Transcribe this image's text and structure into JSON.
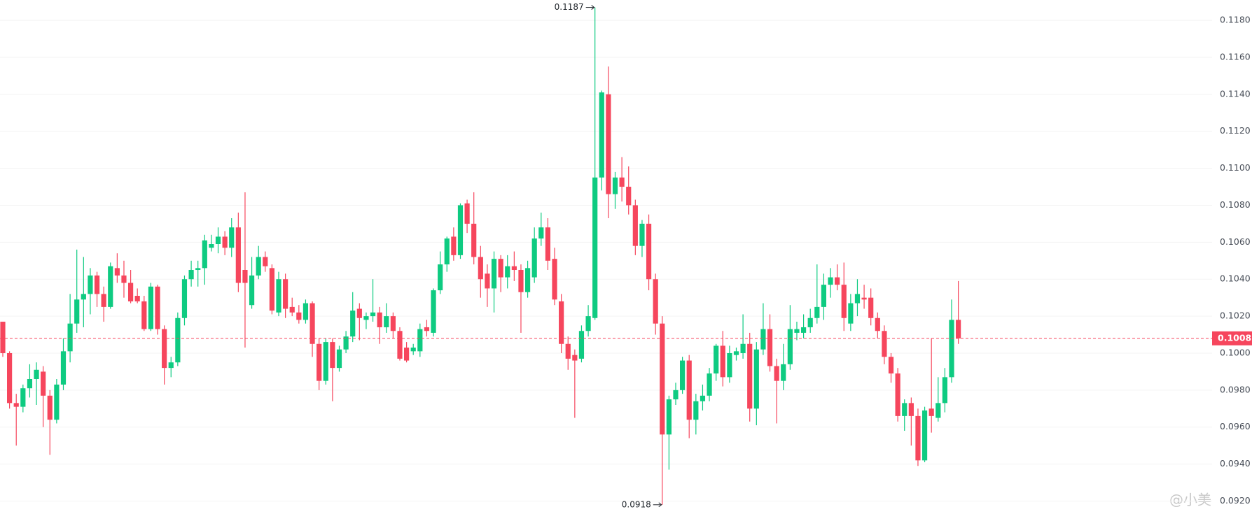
{
  "chart_data": {
    "type": "candlestick",
    "up_color": "#0ecb81",
    "down_color": "#f6465d",
    "ylim": [
      0.0913,
      0.1191
    ],
    "yticks": [
      {
        "value": 0.092,
        "label": "0.0920"
      },
      {
        "value": 0.094,
        "label": "0.0940"
      },
      {
        "value": 0.096,
        "label": "0.0960"
      },
      {
        "value": 0.098,
        "label": "0.0980"
      },
      {
        "value": 0.1,
        "label": "0.1000"
      },
      {
        "value": 0.102,
        "label": "0.1020"
      },
      {
        "value": 0.104,
        "label": "0.1040"
      },
      {
        "value": 0.106,
        "label": "0.1060"
      },
      {
        "value": 0.108,
        "label": "0.1080"
      },
      {
        "value": 0.11,
        "label": "0.1100"
      },
      {
        "value": 0.112,
        "label": "0.1120"
      },
      {
        "value": 0.114,
        "label": "0.1140"
      },
      {
        "value": 0.116,
        "label": "0.1160"
      },
      {
        "value": 0.118,
        "label": "0.1180"
      }
    ],
    "grid": true,
    "watermark": "@小美",
    "open": [
      0.1017,
      0.1,
      0.0973,
      0.0971,
      0.0981,
      0.0986,
      0.099,
      0.0977,
      0.0964,
      0.0983,
      0.1001,
      0.1016,
      0.1029,
      0.1032,
      0.1042,
      0.1032,
      0.1025,
      0.1046,
      0.1042,
      0.1038,
      0.1031,
      0.1028,
      0.1013,
      0.1036,
      0.1013,
      0.0992,
      0.0995,
      0.1019,
      0.104,
      0.1045,
      0.1046,
      0.1057,
      0.1059,
      0.1063,
      0.1057,
      0.1068,
      0.1045,
      0.1026,
      0.1042,
      0.1052,
      0.1046,
      0.1022,
      0.104,
      0.1025,
      0.1022,
      0.1018,
      0.1027,
      0.1005,
      0.0985,
      0.1006,
      0.0992,
      0.1002,
      0.1009,
      0.1024,
      0.1018,
      0.102,
      0.1022,
      0.1014,
      0.102,
      0.1012,
      0.1003,
      0.1001,
      0.1001,
      0.1014,
      0.1011,
      0.1034,
      0.1048,
      0.1063,
      0.1053,
      0.1081,
      0.107,
      0.1052,
      0.1043,
      0.1035,
      0.1051,
      0.1041,
      0.1047,
      0.1045,
      0.1033,
      0.1041,
      0.1062,
      0.1068,
      0.1051,
      0.1028,
      0.1005,
      0.0999,
      0.0997,
      0.1012,
      0.1019,
      0.1095,
      0.114,
      0.1086,
      0.1095,
      0.109,
      0.108,
      0.1058,
      0.107,
      0.104,
      0.1016,
      0.0956,
      0.0975,
      0.098,
      0.0996,
      0.0964,
      0.0974,
      0.0977,
      0.0989,
      0.1004,
      0.0987,
      0.0999,
      0.1,
      0.1005,
      0.097,
      0.1002,
      0.1013,
      0.0993,
      0.0985,
      0.0994,
      0.1011,
      0.1011,
      0.1014,
      0.1019,
      0.1025,
      0.1037,
      0.1041,
      0.1037,
      0.1016,
      0.1027,
      0.103,
      0.103,
      0.1019,
      0.1012,
      0.0998,
      0.0989,
      0.0966,
      0.0973,
      0.0966,
      0.0942,
      0.097,
      0.0965,
      0.0973,
      0.0987,
      0.1018
    ],
    "high": [
      0.1017,
      0.1001,
      0.0978,
      0.0983,
      0.0994,
      0.0995,
      0.0993,
      0.098,
      0.0986,
      0.1008,
      0.1032,
      0.1056,
      0.1052,
      0.1046,
      0.1044,
      0.1036,
      0.1049,
      0.1054,
      0.105,
      0.1045,
      0.1035,
      0.1031,
      0.1038,
      0.1037,
      0.1015,
      0.0998,
      0.1022,
      0.1042,
      0.105,
      0.105,
      0.1064,
      0.1064,
      0.1068,
      0.1066,
      0.1073,
      0.1076,
      0.1087,
      0.1052,
      0.1058,
      0.1055,
      0.1048,
      0.1044,
      0.1043,
      0.103,
      0.1026,
      0.1029,
      0.1028,
      0.1008,
      0.1008,
      0.1008,
      0.1004,
      0.1012,
      0.1033,
      0.1027,
      0.1022,
      0.104,
      0.1025,
      0.1027,
      0.1022,
      0.1014,
      0.1006,
      0.1005,
      0.1016,
      0.1018,
      0.1035,
      0.1055,
      0.1063,
      0.1068,
      0.1081,
      0.1083,
      0.1087,
      0.1058,
      0.1048,
      0.1055,
      0.1053,
      0.1053,
      0.1055,
      0.1048,
      0.105,
      0.1068,
      0.1076,
      0.1073,
      0.1057,
      0.1032,
      0.1009,
      0.1002,
      0.1015,
      0.1026,
      0.1187,
      0.1142,
      0.1155,
      0.1098,
      0.1106,
      0.1101,
      0.1083,
      0.1072,
      0.1075,
      0.1043,
      0.102,
      0.0977,
      0.0984,
      0.0998,
      0.0999,
      0.0978,
      0.0983,
      0.0992,
      0.1005,
      0.1012,
      0.1004,
      0.1003,
      0.1021,
      0.1011,
      0.1006,
      0.1027,
      0.1021,
      0.0997,
      0.1005,
      0.1026,
      0.1017,
      0.1021,
      0.1024,
      0.1048,
      0.1043,
      0.1046,
      0.1048,
      0.1049,
      0.1032,
      0.104,
      0.1037,
      0.1035,
      0.1022,
      0.1015,
      0.1,
      0.0992,
      0.0975,
      0.0976,
      0.097,
      0.0971,
      0.1008,
      0.0987,
      0.0992,
      0.1029,
      0.1039
    ],
    "low": [
      0.0998,
      0.097,
      0.095,
      0.0968,
      0.0976,
      0.0972,
      0.096,
      0.0945,
      0.0962,
      0.098,
      0.0995,
      0.1011,
      0.1014,
      0.1021,
      0.1025,
      0.1017,
      0.1024,
      0.1038,
      0.103,
      0.1027,
      0.1027,
      0.1012,
      0.1012,
      0.101,
      0.0983,
      0.0987,
      0.0993,
      0.1015,
      0.1036,
      0.1036,
      0.1037,
      0.1055,
      0.1054,
      0.1053,
      0.1052,
      0.1033,
      0.1003,
      0.1024,
      0.104,
      0.1044,
      0.1021,
      0.102,
      0.1019,
      0.102,
      0.1016,
      0.1016,
      0.0998,
      0.098,
      0.0983,
      0.0974,
      0.099,
      0.1,
      0.1006,
      0.1007,
      0.1013,
      0.1017,
      0.1005,
      0.1011,
      0.1008,
      0.0996,
      0.0995,
      0.0999,
      0.0998,
      0.1009,
      0.1009,
      0.1032,
      0.1044,
      0.105,
      0.1051,
      0.1065,
      0.1048,
      0.103,
      0.1025,
      0.1022,
      0.1033,
      0.1035,
      0.1039,
      0.1011,
      0.103,
      0.1038,
      0.1058,
      0.1045,
      0.1026,
      0.1,
      0.0991,
      0.0965,
      0.0995,
      0.1009,
      0.1018,
      0.1088,
      0.1073,
      0.1078,
      0.1082,
      0.1075,
      0.1053,
      0.1052,
      0.1034,
      0.101,
      0.0918,
      0.0937,
      0.0972,
      0.0978,
      0.0954,
      0.0956,
      0.0969,
      0.0974,
      0.0985,
      0.0982,
      0.0984,
      0.0996,
      0.0997,
      0.0963,
      0.0961,
      0.0999,
      0.099,
      0.0962,
      0.098,
      0.0991,
      0.1007,
      0.1008,
      0.1011,
      0.1016,
      0.1018,
      0.103,
      0.1034,
      0.1012,
      0.1012,
      0.102,
      0.1024,
      0.1015,
      0.1008,
      0.0994,
      0.0984,
      0.0963,
      0.0958,
      0.095,
      0.0939,
      0.0941,
      0.0957,
      0.0963,
      0.0968,
      0.0984,
      0.1005
    ],
    "close": [
      0.1,
      0.0973,
      0.0971,
      0.0981,
      0.0986,
      0.0991,
      0.0977,
      0.0964,
      0.0983,
      0.1001,
      0.1016,
      0.1029,
      0.1032,
      0.1042,
      0.1032,
      0.1025,
      0.1047,
      0.1042,
      0.1038,
      0.1028,
      0.1028,
      0.1013,
      0.1036,
      0.1013,
      0.0992,
      0.0995,
      0.1019,
      0.104,
      0.1045,
      0.1046,
      0.1061,
      0.1059,
      0.1063,
      0.1057,
      0.1068,
      0.1038,
      0.1038,
      0.1042,
      0.1052,
      0.1047,
      0.1023,
      0.104,
      0.1024,
      0.1022,
      0.1018,
      0.1027,
      0.1005,
      0.0985,
      0.1006,
      0.0992,
      0.1002,
      0.1009,
      0.1023,
      0.1019,
      0.102,
      0.1022,
      0.1014,
      0.102,
      0.1012,
      0.0997,
      0.0996,
      0.1003,
      0.1013,
      0.1012,
      0.1034,
      0.1048,
      0.1062,
      0.1053,
      0.108,
      0.107,
      0.1052,
      0.104,
      0.1035,
      0.1051,
      0.1041,
      0.1047,
      0.1045,
      0.1033,
      0.1046,
      0.1062,
      0.1068,
      0.105,
      0.1029,
      0.1005,
      0.0997,
      0.0996,
      0.1012,
      0.102,
      0.1095,
      0.1141,
      0.1086,
      0.1095,
      0.109,
      0.108,
      0.1058,
      0.107,
      0.104,
      0.1016,
      0.0956,
      0.0975,
      0.098,
      0.0996,
      0.0964,
      0.0974,
      0.0977,
      0.0989,
      0.1004,
      0.0987,
      0.1,
      0.1001,
      0.1005,
      0.097,
      0.1002,
      0.1013,
      0.0993,
      0.0985,
      0.0994,
      0.1013,
      0.1013,
      0.1014,
      0.1019,
      0.1025,
      0.1037,
      0.1041,
      0.1037,
      0.1019,
      0.1027,
      0.1032,
      0.1029,
      0.1019,
      0.1012,
      0.0998,
      0.0989,
      0.0966,
      0.0973,
      0.0966,
      0.0942,
      0.0969,
      0.0966,
      0.0973,
      0.0987,
      0.1018,
      0.1008
    ]
  }
}
